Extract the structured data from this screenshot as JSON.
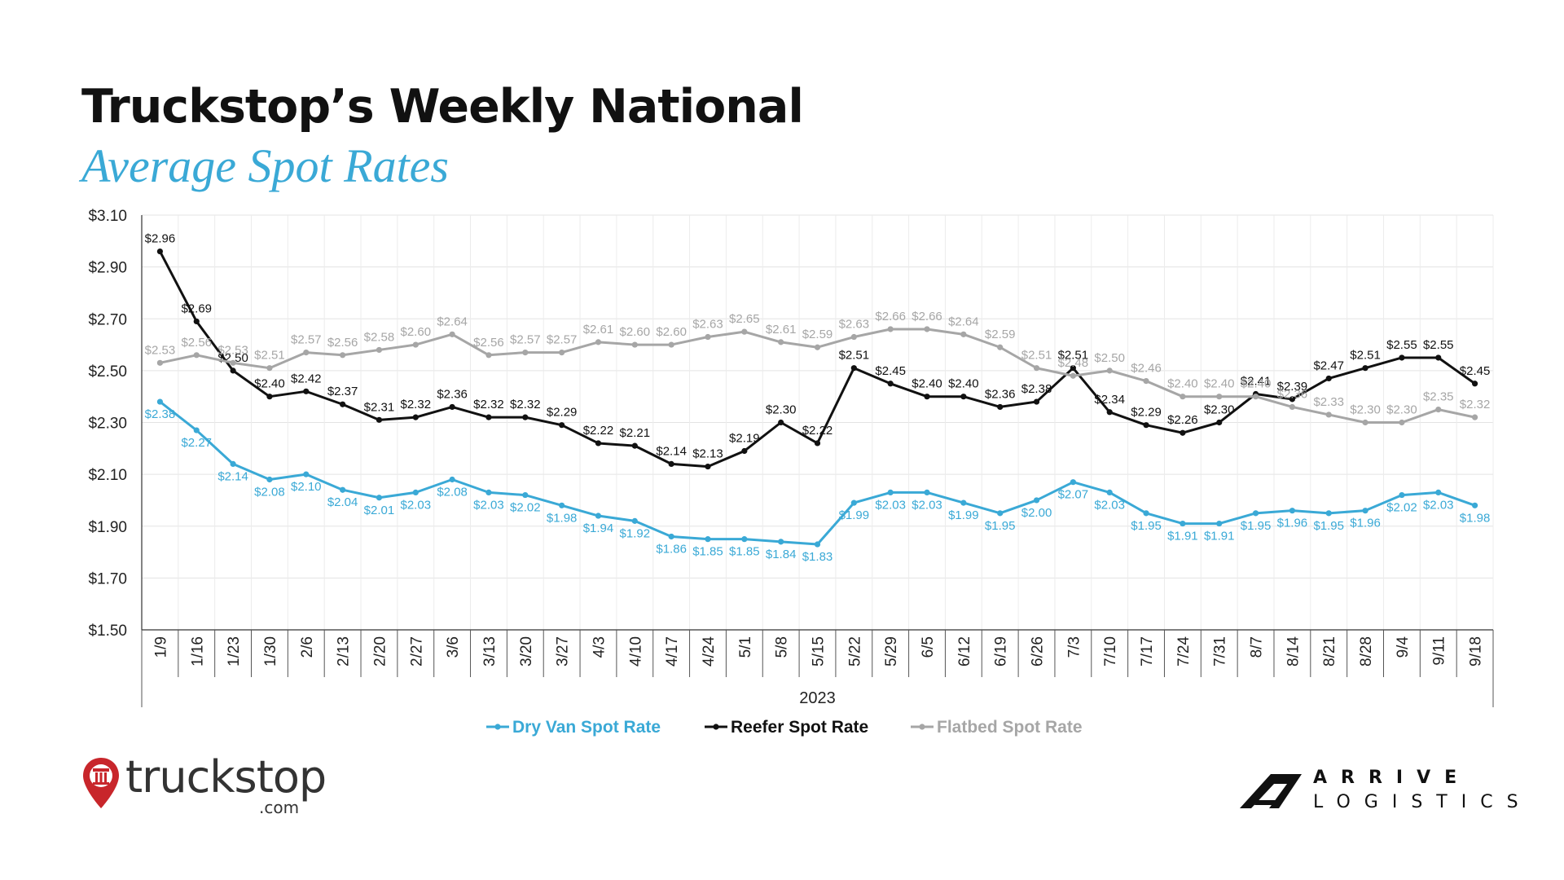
{
  "header": {
    "title": "Truckstop’s Weekly National",
    "subtitle": "Average Spot Rates"
  },
  "brands": {
    "left_name": "truckstop",
    "left_suffix": ".com",
    "right_line1": "ARRIVE",
    "right_line2": "LOGISTICS"
  },
  "chart_data": {
    "type": "line",
    "xlabel": "2023",
    "ylabel": "",
    "ylim": [
      1.5,
      3.1
    ],
    "y_ticks": [
      "$1.50",
      "$1.70",
      "$1.90",
      "$2.10",
      "$2.30",
      "$2.50",
      "$2.70",
      "$2.90",
      "$3.10"
    ],
    "grid": true,
    "legend_position": "bottom",
    "categories": [
      "1/9",
      "1/16",
      "1/23",
      "1/30",
      "2/6",
      "2/13",
      "2/20",
      "2/27",
      "3/6",
      "3/13",
      "3/20",
      "3/27",
      "4/3",
      "4/10",
      "4/17",
      "4/24",
      "5/1",
      "5/8",
      "5/15",
      "5/22",
      "5/29",
      "6/5",
      "6/12",
      "6/19",
      "6/26",
      "7/3",
      "7/10",
      "7/17",
      "7/24",
      "7/31",
      "8/7",
      "8/14",
      "8/21",
      "8/28",
      "9/4",
      "9/11",
      "9/18"
    ],
    "series": [
      {
        "name": "Dry Van Spot Rate",
        "color": "#3aa9d6",
        "values": [
          2.38,
          2.27,
          2.14,
          2.08,
          2.1,
          2.04,
          2.01,
          2.03,
          2.08,
          2.03,
          2.02,
          1.98,
          1.94,
          1.92,
          1.86,
          1.85,
          1.85,
          1.84,
          1.83,
          1.99,
          2.03,
          2.03,
          1.99,
          1.95,
          2.0,
          2.07,
          2.03,
          1.95,
          1.91,
          1.91,
          1.95,
          1.96,
          1.95,
          1.96,
          2.02,
          2.03,
          1.98
        ],
        "labels": [
          "$2.38",
          "$2.27",
          "$2.14",
          "$2.08",
          "$2.10",
          "$2.04",
          "$2.01",
          "$2.03",
          "$2.08",
          "$2.03",
          "$2.02",
          "$1.98",
          "$1.94",
          "$1.92",
          "$1.86",
          "$1.85",
          "$1.85",
          "$1.84",
          "$1.83",
          "$1.99",
          "$2.03",
          "$2.03",
          "$1.99",
          "$1.95",
          "$2.00",
          "$2.07",
          "$2.03",
          "$1.95",
          "$1.91",
          "$1.91",
          "$1.95",
          "$1.96",
          "$1.95",
          "$1.96",
          "$2.02",
          "$2.03",
          "$1.98"
        ]
      },
      {
        "name": "Reefer Spot Rate",
        "color": "#111111",
        "values": [
          2.96,
          2.69,
          2.5,
          2.4,
          2.42,
          2.37,
          2.31,
          2.32,
          2.36,
          2.32,
          2.32,
          2.29,
          2.22,
          2.21,
          2.14,
          2.13,
          2.19,
          2.3,
          2.22,
          2.51,
          2.45,
          2.4,
          2.4,
          2.36,
          2.38,
          2.51,
          2.34,
          2.29,
          2.26,
          2.3,
          2.41,
          2.39,
          2.47,
          2.51,
          2.55,
          2.55,
          2.45
        ],
        "labels": [
          "$2.96",
          "$2.69",
          "$2.50",
          "$2.40",
          "$2.42",
          "$2.37",
          "$2.31",
          "$2.32",
          "$2.36",
          "$2.32",
          "$2.32",
          "$2.29",
          "$2.22",
          "$2.21",
          "$2.14",
          "$2.13",
          "$2.19",
          "$2.30",
          "$2.22",
          "$2.51",
          "$2.45",
          "$2.40",
          "$2.40",
          "$2.36",
          "$2.38",
          "$2.51",
          "$2.34",
          "$2.29",
          "$2.26",
          "$2.30",
          "$2.41",
          "$2.39",
          "$2.47",
          "$2.51",
          "$2.55",
          "$2.55",
          "$2.45"
        ]
      },
      {
        "name": "Flatbed Spot Rate",
        "color": "#a6a6a6",
        "values": [
          2.53,
          2.56,
          2.53,
          2.51,
          2.57,
          2.56,
          2.58,
          2.6,
          2.64,
          2.56,
          2.57,
          2.57,
          2.61,
          2.6,
          2.6,
          2.63,
          2.65,
          2.61,
          2.59,
          2.63,
          2.66,
          2.66,
          2.64,
          2.59,
          2.51,
          2.48,
          2.5,
          2.46,
          2.4,
          2.4,
          2.4,
          2.36,
          2.33,
          2.3,
          2.3,
          2.35,
          2.32
        ],
        "labels": [
          "$2.53",
          "$2.56",
          "$2.53",
          "$2.51",
          "$2.57",
          "$2.56",
          "$2.58",
          "$2.60",
          "$2.64",
          "$2.56",
          "$2.57",
          "$2.57",
          "$2.61",
          "$2.60",
          "$2.60",
          "$2.63",
          "$2.65",
          "$2.61",
          "$2.59",
          "$2.63",
          "$2.66",
          "$2.66",
          "$2.64",
          "$2.59",
          "$2.51",
          "$2.48",
          "$2.50",
          "$2.46",
          "$2.40",
          "$2.40",
          "$2.40",
          "$2.36",
          "$2.33",
          "$2.30",
          "$2.30",
          "$2.35",
          "$2.32"
        ]
      }
    ]
  }
}
